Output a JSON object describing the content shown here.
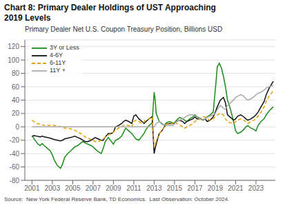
{
  "chart_data": {
    "type": "line",
    "title": "Chart 8: Primary Dealer Holdings of UST Approaching\n2019 Levels",
    "subtitle": "Primary Dealer Net U.S. Coupon Treasury Position, Billions USD",
    "annotations": [
      "Source:  New York Federal Reserve Bank, TD Economics.  Last Observation: October 2024."
    ],
    "xlim": [
      2000.3,
      2024.9
    ],
    "xticks": [
      2001,
      2003,
      2005,
      2007,
      2009,
      2011,
      2013,
      2015,
      2017,
      2019,
      2021,
      2023
    ],
    "ylim": [
      -80,
      130
    ],
    "yticks": [
      -80,
      -60,
      -40,
      -20,
      0,
      20,
      40,
      60,
      80,
      100,
      120
    ],
    "grid": "y",
    "legend": "upper left",
    "series": [
      {
        "name": "3Y or Less",
        "color": "#1a8c1a",
        "line_style": "solid",
        "x": [
          2001.0,
          2001.1,
          2001.2,
          2001.4,
          2001.6,
          2001.8,
          2002.0,
          2002.2,
          2002.5,
          2002.8,
          2003.0,
          2003.2,
          2003.5,
          2003.8,
          2004.0,
          2004.2,
          2004.5,
          2004.8,
          2005.0,
          2005.2,
          2005.5,
          2005.8,
          2006.0,
          2006.2,
          2006.5,
          2006.8,
          2007.0,
          2007.2,
          2007.5,
          2007.8,
          2008.0,
          2008.2,
          2008.5,
          2008.8,
          2009.0,
          2009.2,
          2009.5,
          2009.8,
          2010.0,
          2010.2,
          2010.5,
          2010.8,
          2011.0,
          2011.2,
          2011.5,
          2011.8,
          2012.0,
          2012.2,
          2012.5,
          2012.8,
          2013.0,
          2013.1,
          2013.2,
          2013.5,
          2013.8,
          2014.0,
          2014.2,
          2014.5,
          2014.8,
          2015.0,
          2015.2,
          2015.5,
          2015.8,
          2016.0,
          2016.2,
          2016.5,
          2016.8,
          2017.0,
          2017.2,
          2017.5,
          2017.8,
          2018.0,
          2018.2,
          2018.5,
          2018.8,
          2019.0,
          2019.1,
          2019.2,
          2019.4,
          2019.6,
          2019.8,
          2020.0,
          2020.2,
          2020.5,
          2020.8,
          2021.0,
          2021.2,
          2021.5,
          2021.8,
          2022.0,
          2022.2,
          2022.5,
          2022.8,
          2023.0,
          2023.2,
          2023.5,
          2023.8,
          2024.0,
          2024.3,
          2024.7
        ],
        "values": [
          -14,
          -15,
          -18,
          -22,
          -26,
          -28,
          -25,
          -28,
          -32,
          -36,
          -42,
          -50,
          -58,
          -62,
          -56,
          -46,
          -40,
          -36,
          -33,
          -30,
          -28,
          -24,
          -22,
          -24,
          -26,
          -28,
          -30,
          -33,
          -37,
          -40,
          -32,
          -22,
          -16,
          -22,
          -26,
          -20,
          -18,
          -14,
          -8,
          -2,
          -6,
          -10,
          -14,
          -18,
          -20,
          -14,
          -10,
          -4,
          2,
          6,
          52,
          40,
          20,
          8,
          4,
          2,
          6,
          8,
          6,
          6,
          10,
          14,
          12,
          10,
          8,
          12,
          15,
          18,
          15,
          13,
          10,
          12,
          15,
          18,
          22,
          55,
          72,
          90,
          95,
          88,
          76,
          60,
          40,
          26,
          8,
          -6,
          -10,
          -8,
          -4,
          0,
          2,
          -2,
          -4,
          -6,
          2,
          8,
          12,
          18,
          24,
          30
        ]
      },
      {
        "name": "4-6Y",
        "color": "#111111",
        "line_style": "solid",
        "x": [
          2001.0,
          2001.2,
          2001.5,
          2001.8,
          2002.0,
          2002.2,
          2002.5,
          2002.8,
          2003.0,
          2003.2,
          2003.5,
          2003.8,
          2004.0,
          2004.2,
          2004.5,
          2004.8,
          2005.0,
          2005.2,
          2005.5,
          2005.8,
          2006.0,
          2006.2,
          2006.5,
          2006.8,
          2007.0,
          2007.2,
          2007.5,
          2007.8,
          2008.0,
          2008.2,
          2008.5,
          2008.8,
          2009.0,
          2009.2,
          2009.5,
          2009.8,
          2010.0,
          2010.2,
          2010.5,
          2010.8,
          2011.0,
          2011.2,
          2011.5,
          2011.8,
          2012.0,
          2012.2,
          2012.5,
          2012.8,
          2013.0,
          2013.1,
          2013.3,
          2013.5,
          2013.8,
          2014.0,
          2014.2,
          2014.5,
          2014.8,
          2015.0,
          2015.2,
          2015.5,
          2015.8,
          2016.0,
          2016.2,
          2016.5,
          2016.8,
          2017.0,
          2017.2,
          2017.5,
          2017.8,
          2018.0,
          2018.2,
          2018.5,
          2018.8,
          2019.0,
          2019.2,
          2019.5,
          2019.8,
          2020.0,
          2020.2,
          2020.5,
          2020.8,
          2021.0,
          2021.2,
          2021.5,
          2021.8,
          2022.0,
          2022.2,
          2022.5,
          2022.8,
          2023.0,
          2023.2,
          2023.5,
          2023.8,
          2024.0,
          2024.3,
          2024.7
        ],
        "values": [
          -14,
          -13,
          -14,
          -15,
          -14,
          -15,
          -16,
          -17,
          -18,
          -19,
          -20,
          -21,
          -20,
          -18,
          -17,
          -16,
          -15,
          -14,
          -16,
          -18,
          -20,
          -22,
          -22,
          -20,
          -18,
          -16,
          -18,
          -20,
          -20,
          -15,
          -10,
          -10,
          -8,
          0,
          2,
          5,
          8,
          10,
          8,
          5,
          16,
          18,
          12,
          8,
          5,
          8,
          12,
          15,
          -40,
          -32,
          -20,
          -10,
          -5,
          0,
          4,
          5,
          5,
          5,
          8,
          10,
          8,
          5,
          8,
          10,
          12,
          15,
          12,
          12,
          10,
          12,
          8,
          10,
          15,
          22,
          30,
          40,
          44,
          36,
          18,
          14,
          10,
          12,
          16,
          18,
          15,
          12,
          10,
          12,
          15,
          18,
          22,
          30,
          38,
          48,
          58,
          68
        ]
      },
      {
        "name": "6-11Y",
        "color": "#e8a000",
        "line_style": "dashed",
        "x": [
          2001.0,
          2001.2,
          2001.5,
          2001.8,
          2002.0,
          2002.2,
          2002.5,
          2002.8,
          2003.0,
          2003.2,
          2003.5,
          2003.8,
          2004.0,
          2004.2,
          2004.5,
          2004.8,
          2005.0,
          2005.2,
          2005.5,
          2005.8,
          2006.0,
          2006.2,
          2006.5,
          2006.8,
          2007.0,
          2007.2,
          2007.5,
          2007.8,
          2008.0,
          2008.2,
          2008.5,
          2008.8,
          2009.0,
          2009.2,
          2009.5,
          2009.8,
          2010.0,
          2010.2,
          2010.5,
          2010.8,
          2011.0,
          2011.2,
          2011.5,
          2011.8,
          2012.0,
          2012.2,
          2012.5,
          2012.8,
          2013.0,
          2013.1,
          2013.3,
          2013.5,
          2013.8,
          2014.0,
          2014.2,
          2014.5,
          2014.8,
          2015.0,
          2015.2,
          2015.5,
          2015.8,
          2016.0,
          2016.2,
          2016.5,
          2016.8,
          2017.0,
          2017.2,
          2017.5,
          2017.8,
          2018.0,
          2018.2,
          2018.5,
          2018.8,
          2019.0,
          2019.2,
          2019.5,
          2019.8,
          2020.0,
          2020.2,
          2020.5,
          2020.8,
          2021.0,
          2021.2,
          2021.5,
          2021.8,
          2022.0,
          2022.2,
          2022.5,
          2022.8,
          2023.0,
          2023.2,
          2023.5,
          2023.8,
          2024.0,
          2024.3,
          2024.7
        ],
        "values": [
          10,
          8,
          5,
          4,
          3,
          2,
          2,
          2,
          2,
          2,
          1,
          0,
          0,
          -2,
          -2,
          -3,
          -4,
          -5,
          -8,
          -10,
          -12,
          -15,
          -17,
          -19,
          -20,
          -22,
          -22,
          -20,
          -18,
          -15,
          -12,
          -10,
          -8,
          -5,
          -2,
          0,
          2,
          3,
          2,
          0,
          8,
          10,
          8,
          5,
          8,
          10,
          12,
          15,
          -30,
          -26,
          -18,
          -10,
          -5,
          0,
          4,
          5,
          5,
          8,
          5,
          3,
          0,
          -2,
          0,
          2,
          5,
          8,
          10,
          12,
          15,
          15,
          12,
          10,
          12,
          15,
          18,
          20,
          18,
          12,
          8,
          6,
          5,
          8,
          10,
          12,
          10,
          8,
          5,
          8,
          10,
          12,
          16,
          22,
          30,
          38,
          46,
          54
        ]
      },
      {
        "name": "11Y +",
        "color": "#aaaaaa",
        "line_style": "solid",
        "x": [
          2001.0,
          2001.2,
          2001.5,
          2001.8,
          2002.0,
          2002.2,
          2002.5,
          2002.8,
          2003.0,
          2003.2,
          2003.5,
          2003.8,
          2004.0,
          2004.2,
          2004.5,
          2004.8,
          2005.0,
          2005.2,
          2005.5,
          2005.8,
          2006.0,
          2006.2,
          2006.5,
          2006.8,
          2007.0,
          2007.2,
          2007.5,
          2007.8,
          2008.0,
          2008.2,
          2008.5,
          2008.8,
          2009.0,
          2009.2,
          2009.5,
          2009.8,
          2010.0,
          2010.2,
          2010.5,
          2010.8,
          2011.0,
          2011.2,
          2011.5,
          2011.8,
          2012.0,
          2012.2,
          2012.5,
          2012.8,
          2013.0,
          2013.2,
          2013.5,
          2013.8,
          2014.0,
          2014.2,
          2014.5,
          2014.8,
          2015.0,
          2015.2,
          2015.5,
          2015.8,
          2016.0,
          2016.2,
          2016.5,
          2016.8,
          2017.0,
          2017.2,
          2017.5,
          2017.8,
          2018.0,
          2018.2,
          2018.5,
          2018.8,
          2019.0,
          2019.2,
          2019.5,
          2019.8,
          2020.0,
          2020.2,
          2020.5,
          2020.8,
          2021.0,
          2021.2,
          2021.5,
          2021.8,
          2022.0,
          2022.2,
          2022.5,
          2022.8,
          2023.0,
          2023.2,
          2023.5,
          2023.8,
          2024.0,
          2024.3,
          2024.7
        ],
        "values": [
          0,
          0,
          0,
          0,
          0,
          0,
          0,
          0,
          0,
          0,
          0,
          0,
          0,
          0,
          0,
          0,
          0,
          0,
          0,
          0,
          0,
          0,
          0,
          0,
          0,
          0,
          0,
          0,
          0,
          0,
          0,
          0,
          0,
          0,
          0,
          0,
          0,
          0,
          0,
          0,
          0,
          0,
          0,
          0,
          0,
          0,
          0,
          0,
          0,
          5,
          8,
          5,
          2,
          2,
          2,
          2,
          5,
          8,
          10,
          12,
          14,
          16,
          18,
          18,
          16,
          14,
          12,
          10,
          12,
          14,
          16,
          18,
          20,
          26,
          32,
          28,
          26,
          32,
          36,
          40,
          44,
          46,
          48,
          46,
          42,
          40,
          42,
          45,
          48,
          50,
          52,
          55,
          58,
          60,
          62
        ]
      }
    ]
  }
}
